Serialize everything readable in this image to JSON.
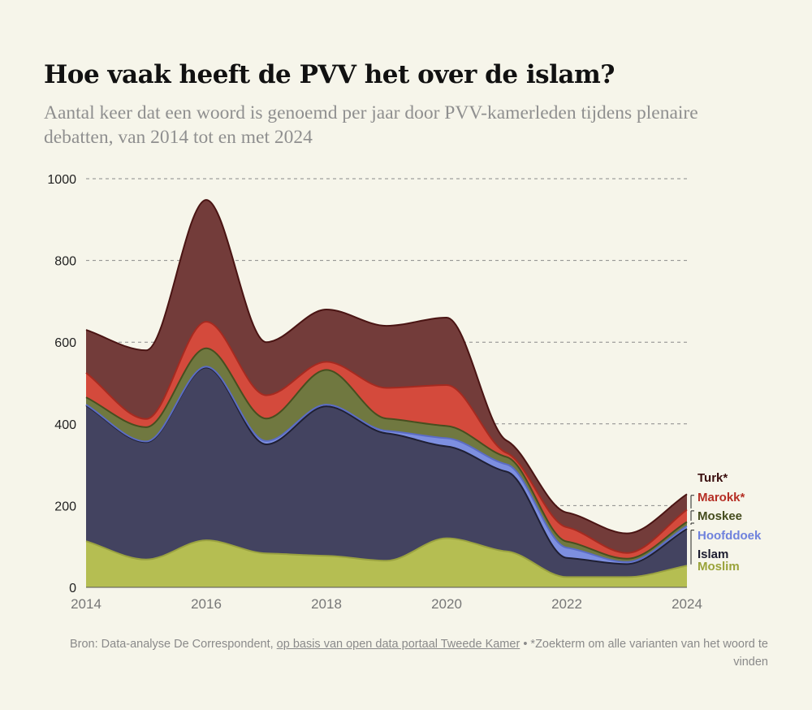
{
  "title": "Hoe vaak heeft de PVV het over de islam?",
  "subtitle": "Aantal keer dat een woord is genoemd per jaar door PVV-kamerleden tijdens plenaire debatten, van 2014 tot en met 2024",
  "footer": {
    "source_prefix": "Bron: Data-analyse De Correspondent,",
    "source_link": "op basis van open data portaal Tweede Kamer",
    "bullet": "•",
    "note": "*Zoekterm om alle varianten van het woord te vinden"
  },
  "chart_data": {
    "type": "area",
    "stacked": true,
    "x": [
      2014,
      2015,
      2016,
      2017,
      2018,
      2019,
      2020,
      2021,
      2022,
      2023,
      2024
    ],
    "xticks": [
      "2014",
      "2016",
      "2018",
      "2020",
      "2022",
      "2024"
    ],
    "yticks": [
      "0",
      "200",
      "400",
      "600",
      "800",
      "1000"
    ],
    "ylim": [
      0,
      1000
    ],
    "grid": true,
    "series": [
      {
        "name": "Moslim",
        "color": "#b5be52",
        "stroke": "#9aa240",
        "values": [
          113,
          68,
          115,
          83,
          77,
          65,
          120,
          88,
          25,
          25,
          53
        ]
      },
      {
        "name": "Islam",
        "color": "#434360",
        "stroke": "#1f1f33",
        "values": [
          332,
          287,
          423,
          267,
          366,
          312,
          225,
          195,
          47,
          32,
          90
        ]
      },
      {
        "name": "Hoofddoek",
        "color": "#7d8fe0",
        "stroke": "#5b6cc4",
        "values": [
          2,
          2,
          2,
          8,
          4,
          6,
          20,
          18,
          25,
          5,
          7
        ]
      },
      {
        "name": "Moskee",
        "color": "#707840",
        "stroke": "#474f1f",
        "values": [
          18,
          35,
          45,
          55,
          85,
          30,
          30,
          18,
          15,
          8,
          10
        ]
      },
      {
        "name": "Marokk*",
        "color": "#d44a3c",
        "stroke": "#a52a20",
        "values": [
          60,
          20,
          65,
          57,
          20,
          75,
          100,
          10,
          35,
          14,
          30
        ]
      },
      {
        "name": "Turk*",
        "color": "#733c3a",
        "stroke": "#4a1413",
        "values": [
          105,
          168,
          298,
          130,
          128,
          152,
          165,
          30,
          36,
          48,
          38
        ]
      }
    ]
  }
}
